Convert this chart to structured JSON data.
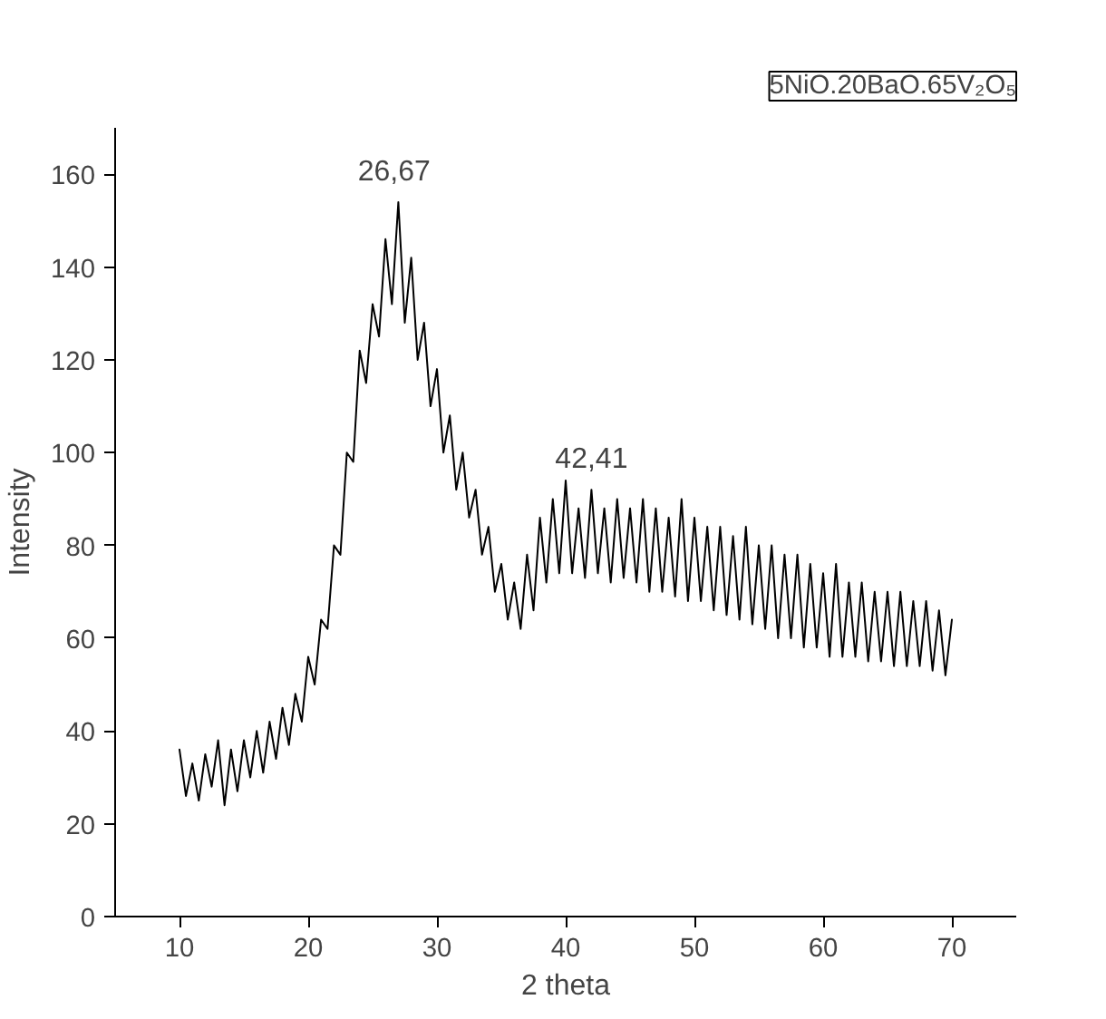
{
  "chart_data": {
    "type": "line",
    "xlabel": "2 theta",
    "ylabel": "Intensity",
    "annotations": [
      {
        "text": "26,67",
        "x": 26.67,
        "y": 154
      },
      {
        "text": "42,41",
        "x": 42,
        "y": 92
      },
      "5NiO.20BaO.65V₂O₅"
    ],
    "x": [
      10,
      10.5,
      11,
      11.5,
      12,
      12.5,
      13,
      13.5,
      14,
      14.5,
      15,
      15.5,
      16,
      16.5,
      17,
      17.5,
      18,
      18.5,
      19,
      19.5,
      20,
      20.5,
      21,
      21.5,
      22,
      22.5,
      23,
      23.5,
      24,
      24.5,
      25,
      25.5,
      26,
      26.5,
      27,
      27.5,
      28,
      28.5,
      29,
      29.5,
      30,
      30.5,
      31,
      31.5,
      32,
      32.5,
      33,
      33.5,
      34,
      34.5,
      35,
      35.5,
      36,
      36.5,
      37,
      37.5,
      38,
      38.5,
      39,
      39.5,
      40,
      40.5,
      41,
      41.5,
      42,
      42.5,
      43,
      43.5,
      44,
      44.5,
      45,
      45.5,
      46,
      46.5,
      47,
      47.5,
      48,
      48.5,
      49,
      49.5,
      50,
      50.5,
      51,
      51.5,
      52,
      52.5,
      53,
      53.5,
      54,
      54.5,
      55,
      55.5,
      56,
      56.5,
      57,
      57.5,
      58,
      58.5,
      59,
      59.5,
      60,
      60.5,
      61,
      61.5,
      62,
      62.5,
      63,
      63.5,
      64,
      64.5,
      65,
      65.5,
      66,
      66.5,
      67,
      67.5,
      68,
      68.5,
      69,
      69.5,
      70
    ],
    "series": [
      {
        "color": "#000000",
        "values": [
          36,
          26,
          33,
          25,
          35,
          28,
          38,
          24,
          36,
          27,
          38,
          30,
          40,
          31,
          42,
          34,
          45,
          37,
          48,
          42,
          56,
          50,
          64,
          62,
          80,
          78,
          100,
          98,
          122,
          115,
          132,
          125,
          146,
          132,
          154,
          128,
          142,
          120,
          128,
          110,
          118,
          100,
          108,
          92,
          100,
          86,
          92,
          78,
          84,
          70,
          76,
          64,
          72,
          62,
          78,
          66,
          86,
          72,
          90,
          74,
          94,
          74,
          88,
          73,
          92,
          74,
          88,
          72,
          90,
          73,
          88,
          72,
          90,
          70,
          88,
          70,
          86,
          69,
          90,
          68,
          86,
          68,
          84,
          66,
          84,
          65,
          82,
          64,
          84,
          63,
          80,
          62,
          80,
          60,
          78,
          60,
          78,
          58,
          76,
          58,
          74,
          56,
          76,
          56,
          72,
          56,
          72,
          55,
          70,
          55,
          70,
          54,
          70,
          54,
          68,
          54,
          68,
          53,
          66,
          52,
          64
        ]
      }
    ],
    "xlim": [
      5,
      75
    ],
    "ylim": [
      0,
      170
    ],
    "xticks": [
      10,
      20,
      30,
      40,
      50,
      60,
      70
    ],
    "yticks": [
      0,
      20,
      40,
      60,
      80,
      100,
      120,
      140,
      160
    ],
    "grid": false,
    "marker": "none",
    "line_style": "solid"
  }
}
